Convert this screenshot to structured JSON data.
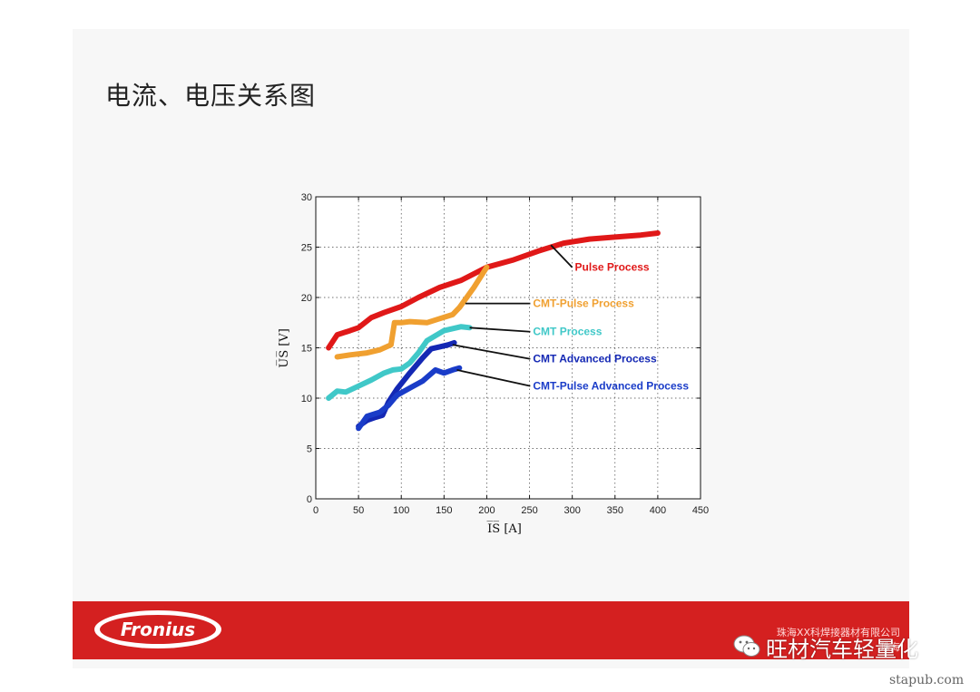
{
  "slide": {
    "title": "电流、电压关系图",
    "footer_color": "#d42020",
    "logo_text": "Fronius",
    "company_lines": [
      "珠海XX科焊接器材有限公司",
      "珠海"
    ],
    "wechat_label": "旺材汽车轻量化",
    "site": "stapub.com"
  },
  "chart_data": {
    "type": "line",
    "xlabel": "I̅S̅ [A]",
    "ylabel": "U̅S̅ [V]",
    "xlim": [
      0,
      450
    ],
    "ylim": [
      0,
      30
    ],
    "xticks": [
      0,
      50,
      100,
      150,
      200,
      250,
      300,
      350,
      400,
      450
    ],
    "yticks": [
      0,
      5,
      10,
      15,
      20,
      25,
      30
    ],
    "grid": true,
    "series": [
      {
        "name": "Pulse Process",
        "color": "#e01818",
        "x": [
          15,
          25,
          40,
          50,
          65,
          80,
          100,
          120,
          145,
          170,
          200,
          230,
          260,
          290,
          320,
          350,
          380,
          400
        ],
        "y": [
          15.0,
          16.3,
          16.7,
          17.0,
          18.0,
          18.5,
          19.1,
          20.0,
          21.0,
          21.7,
          23.0,
          23.7,
          24.6,
          25.4,
          25.8,
          26.0,
          26.2,
          26.4
        ]
      },
      {
        "name": "CMT-Pulse Process",
        "color": "#f0a030",
        "x": [
          25,
          40,
          60,
          75,
          88,
          92,
          100,
          110,
          130,
          145,
          160,
          168,
          185,
          200
        ],
        "y": [
          14.1,
          14.3,
          14.5,
          14.8,
          15.3,
          17.5,
          17.5,
          17.6,
          17.5,
          17.9,
          18.3,
          19.0,
          21.0,
          23.0
        ]
      },
      {
        "name": "CMT Process",
        "color": "#40c8c8",
        "x": [
          15,
          25,
          35,
          50,
          65,
          80,
          90,
          100,
          110,
          120,
          130,
          150,
          170,
          180
        ],
        "y": [
          10.0,
          10.7,
          10.6,
          11.2,
          11.8,
          12.5,
          12.8,
          12.9,
          13.5,
          14.5,
          15.7,
          16.7,
          17.1,
          17.0
        ]
      },
      {
        "name": "CMT Advanced Process",
        "color": "#1428b4",
        "x": [
          50,
          60,
          70,
          78,
          85,
          95,
          110,
          125,
          135,
          145,
          155,
          162
        ],
        "y": [
          7.2,
          7.8,
          8.1,
          8.3,
          9.6,
          10.9,
          12.5,
          14.0,
          14.9,
          15.1,
          15.3,
          15.5
        ]
      },
      {
        "name": "CMT-Pulse Advanced Process",
        "color": "#1a3cc8",
        "x": [
          50,
          60,
          75,
          85,
          95,
          110,
          125,
          140,
          150,
          160,
          168
        ],
        "y": [
          7.0,
          8.2,
          8.6,
          9.3,
          10.3,
          11.0,
          11.7,
          12.8,
          12.5,
          12.8,
          13.0
        ]
      }
    ],
    "annotations": [
      {
        "text": "Pulse Process",
        "series": 0,
        "color": "#e01818",
        "from": [
          275,
          25.2
        ],
        "label": [
          302,
          23.0
        ]
      },
      {
        "text": "CMT-Pulse Process",
        "series": 1,
        "color": "#f0a030",
        "from": [
          175,
          19.4
        ],
        "label": [
          253,
          19.4
        ]
      },
      {
        "text": "CMT Process",
        "series": 2,
        "color": "#40c8c8",
        "from": [
          180,
          17.0
        ],
        "label": [
          253,
          16.6
        ]
      },
      {
        "text": "CMT Advanced Process",
        "series": 3,
        "color": "#1428b4",
        "from": [
          160,
          15.3
        ],
        "label": [
          253,
          13.9
        ]
      },
      {
        "text": "CMT-Pulse Advanced Process",
        "series": 4,
        "color": "#1a3cc8",
        "from": [
          165,
          12.8
        ],
        "label": [
          253,
          11.2
        ]
      }
    ]
  }
}
